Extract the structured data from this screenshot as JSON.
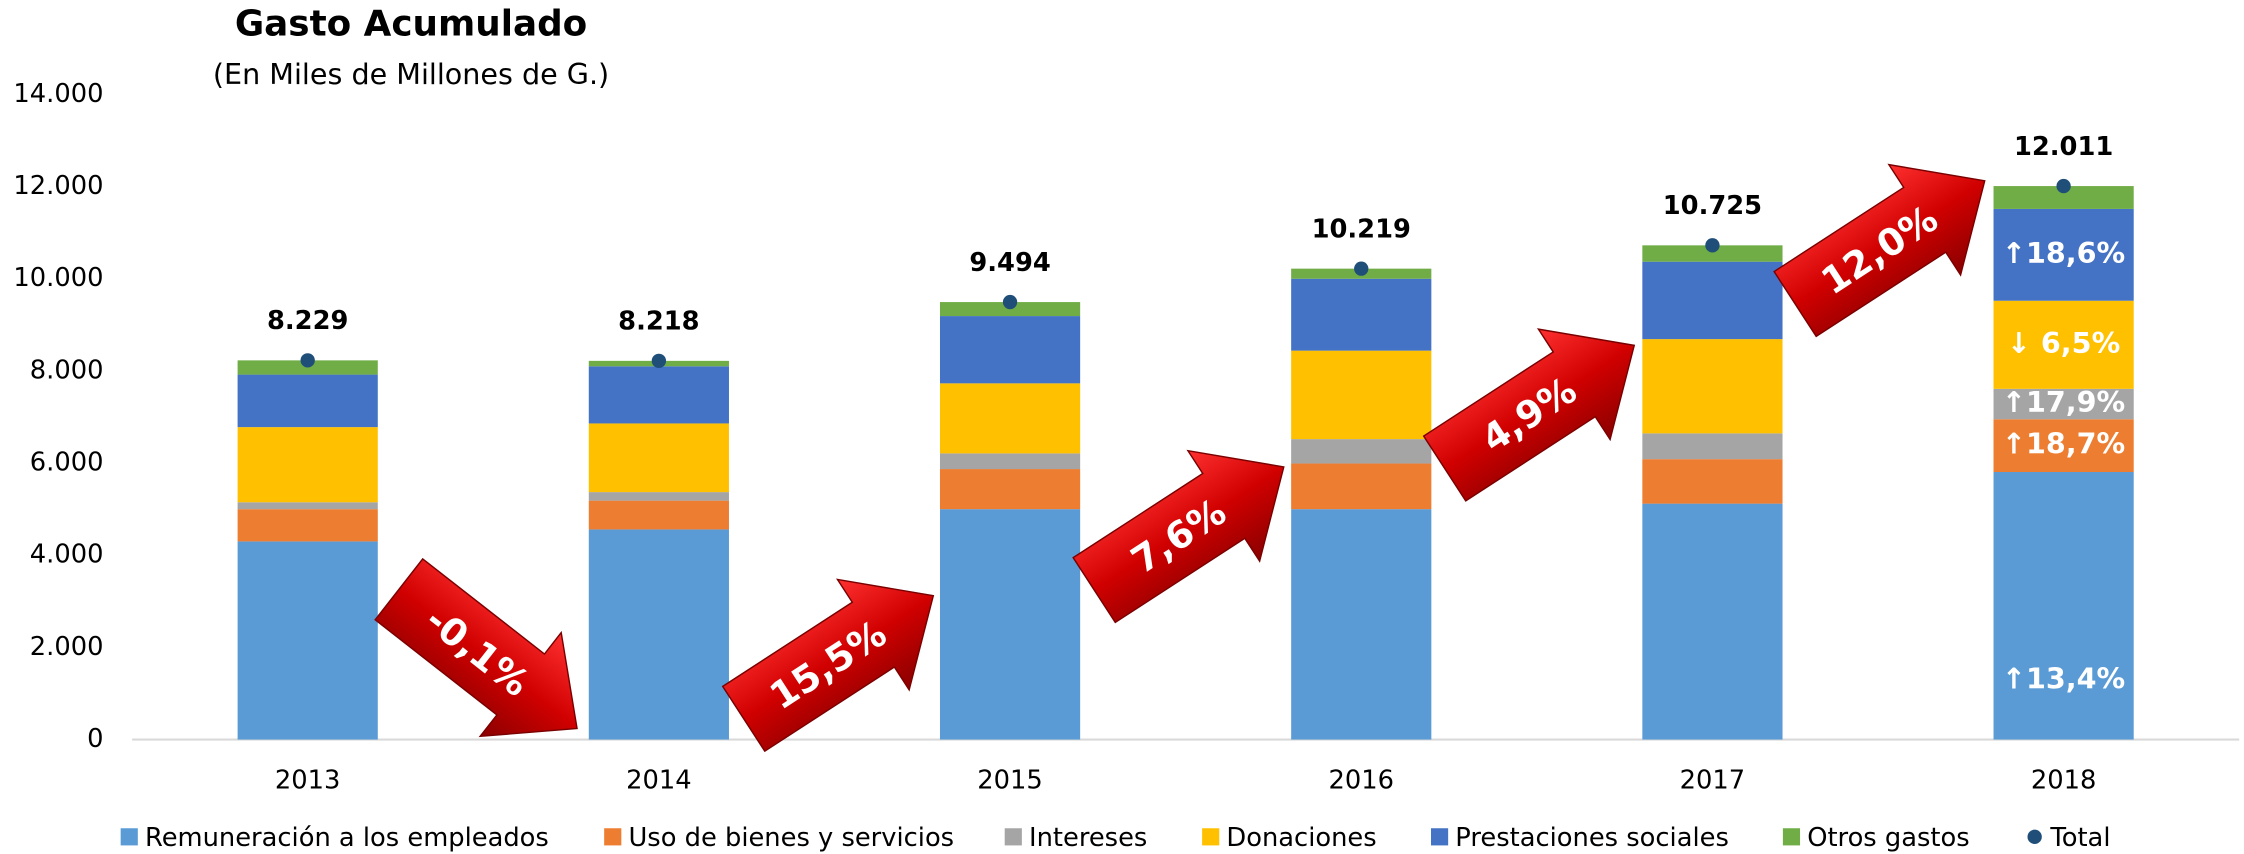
{
  "chart_data": {
    "type": "stacked_bar",
    "title": "Gasto Acumulado",
    "subtitle": "(En Miles de Millones de G.)",
    "categories": [
      "2013",
      "2014",
      "2015",
      "2016",
      "2017",
      "2018"
    ],
    "series": [
      {
        "name": "Remuneración a los empleados",
        "color": "#5b9bd5",
        "values": [
          4300,
          4560,
          5000,
          5000,
          5120,
          5806
        ]
      },
      {
        "name": "Uso de bienes y servicios",
        "color": "#ed7d31",
        "values": [
          700,
          625,
          870,
          990,
          965,
          1145
        ]
      },
      {
        "name": "Intereses",
        "color": "#a5a5a5",
        "values": [
          150,
          185,
          340,
          530,
          560,
          660
        ]
      },
      {
        "name": "Donaciones",
        "color": "#ffc000",
        "values": [
          1630,
          1490,
          1520,
          1920,
          2045,
          1912
        ]
      },
      {
        "name": "Prestaciones sociales",
        "color": "#4472c4",
        "values": [
          1140,
          1240,
          1460,
          1560,
          1680,
          1992
        ]
      },
      {
        "name": "Otros gastos",
        "color": "#70ad47",
        "values": [
          309,
          118,
          304,
          219,
          355,
          496
        ]
      }
    ],
    "total": {
      "name": "Total",
      "color": "#1f4e79",
      "values": [
        8229,
        8218,
        9494,
        10219,
        10725,
        12011
      ],
      "value_labels": [
        "8.229",
        "8.218",
        "9.494",
        "10.219",
        "10.725",
        "12.011"
      ]
    },
    "growth_labels": [
      "-0,1%",
      "15,5%",
      "7,6%",
      "4,9%",
      "12,0%"
    ],
    "last_segment_labels": [
      "↑13,4%",
      "↑18,7%",
      "↑17,9%",
      "↓ 6,5%",
      "↑18,6%",
      null
    ],
    "ylim": [
      0,
      14000
    ],
    "yticks": [
      0,
      {
        "value": 2000,
        "label": "2.000"
      },
      {
        "value": 4000,
        "label": "4.000"
      },
      {
        "value": 6000,
        "label": "6.000"
      },
      {
        "value": 8000,
        "label": "8.000"
      },
      {
        "value": 10000,
        "label": "10.000"
      },
      {
        "value": 12000,
        "label": "12.000"
      },
      {
        "value": 14000,
        "label": "14.000"
      }
    ],
    "grid": false,
    "legend": "bottom"
  }
}
